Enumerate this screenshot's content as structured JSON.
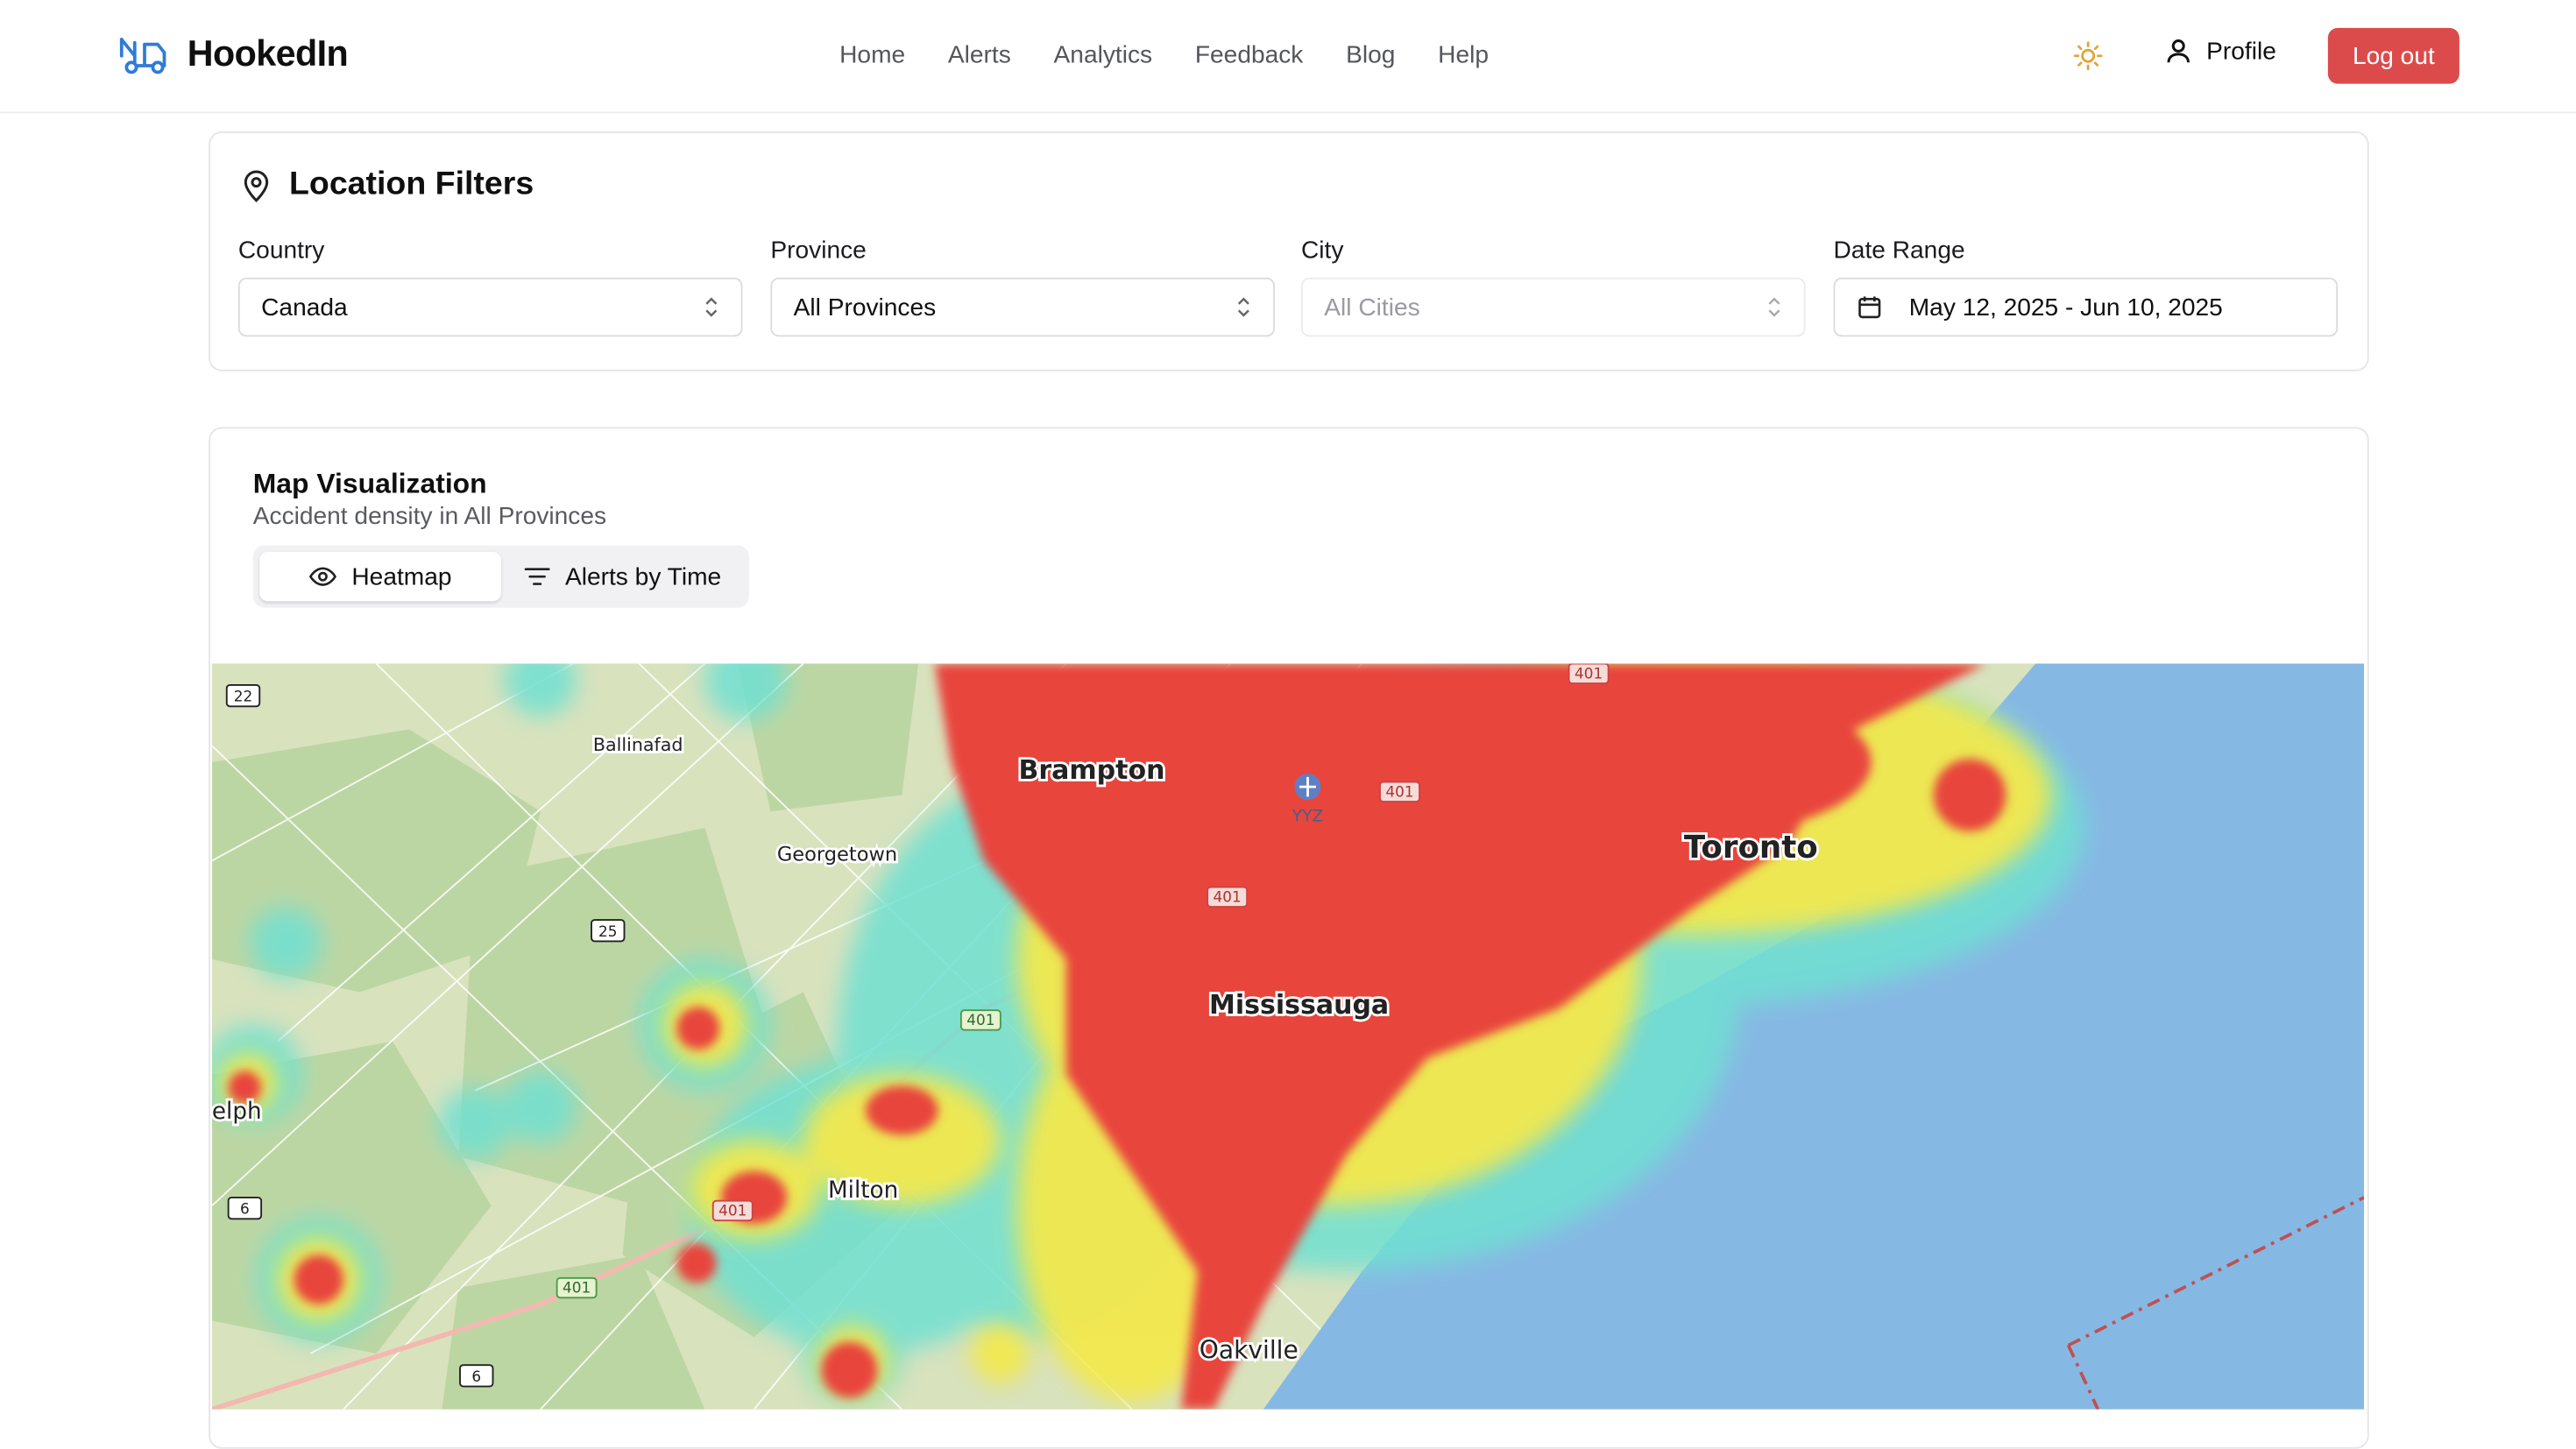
{
  "app": {
    "name": "HookedIn"
  },
  "nav": [
    "Home",
    "Alerts",
    "Analytics",
    "Feedback",
    "Blog",
    "Help"
  ],
  "header": {
    "profile_label": "Profile",
    "logout_label": "Log out"
  },
  "filters": {
    "title": "Location Filters",
    "country": {
      "label": "Country",
      "value": "Canada"
    },
    "province": {
      "label": "Province",
      "value": "All Provinces"
    },
    "city": {
      "label": "City",
      "placeholder": "All Cities"
    },
    "date_range": {
      "label": "Date Range",
      "value": "May 12, 2025 - Jun 10, 2025"
    }
  },
  "map_section": {
    "title": "Map Visualization",
    "subtitle": "Accident density in All Provinces",
    "tabs": [
      {
        "label": "Heatmap",
        "active": true
      },
      {
        "label": "Alerts by Time",
        "active": false
      }
    ]
  },
  "map": {
    "places": [
      "Brampton",
      "Toronto",
      "Mississauga",
      "Milton",
      "Oakville",
      "Georgetown",
      "Ballinafad",
      "elph"
    ],
    "airport": "YYZ",
    "highway_shields": [
      "22",
      "25",
      "6",
      "6",
      "401",
      "401",
      "401",
      "401",
      "401",
      "401"
    ]
  },
  "colors": {
    "accent_red": "#dc4b4b",
    "lake": "#86b8e4",
    "land": "#d8e2bd",
    "heat_high": "#e8453e"
  }
}
